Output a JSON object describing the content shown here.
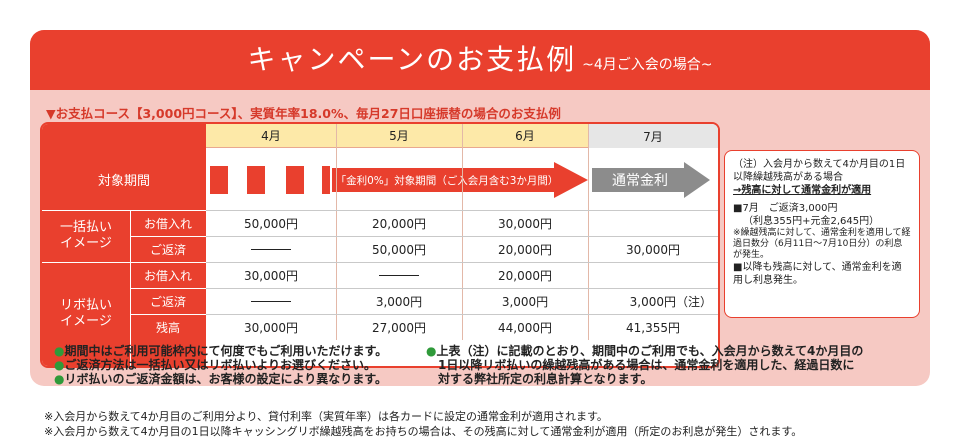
{
  "header": {
    "title": "キャンペーンのお支払例",
    "subtitle": "~4月ご入会の場合~"
  },
  "caption": "▼お支払コース【3,000円コース】、実質年率18.0%、毎月27日口座振替の場合のお支払例",
  "months": [
    "4月",
    "5月",
    "6月",
    "7月"
  ],
  "rows": {
    "period": "対象期間",
    "lump_group": "一括払い\nイメージ",
    "revo_group": "リボ払い\nイメージ",
    "borrow": "お借入れ",
    "repay": "ご返済",
    "balance": "残高"
  },
  "period_bar": {
    "campaign": "「金利0%」対象期間（ご入会月含む3か月間）",
    "normal": "通常金利"
  },
  "lump": {
    "borrow": [
      "50,000円",
      "20,000円",
      "30,000円",
      ""
    ],
    "repay": [
      "—",
      "50,000円",
      "20,000円",
      "30,000円"
    ]
  },
  "revo": {
    "borrow": [
      "30,000円",
      "—",
      "20,000円",
      ""
    ],
    "repay": [
      "—",
      "3,000円",
      "3,000円",
      "3,000円（注）"
    ],
    "balance": [
      "30,000円",
      "27,000円",
      "44,000円",
      "41,355円"
    ]
  },
  "note": {
    "line1": "（注）入会月から数えて4か月目の1日以降繰越残高がある場合",
    "line2": "→残高に対して通常金利が適用",
    "line3": "■7月　ご返済3,000円",
    "line4": "（利息355円+元金2,645円）",
    "line5": "※繰越残高に対して、通常金利を適用して経過日数分（6月11日～7月10日分）の利息が発生。",
    "line6": "■以降も残高に対して、通常金利を適用し利息発生。"
  },
  "bullets_left": [
    "●期間中はご利用可能枠内にて何度でもご利用いただけます。",
    "●ご返済方法は一括払い又はリボ払いよりお選びください。",
    "●リボ払いのご返済金額は、お客様の設定により異なります。"
  ],
  "bullets_right": [
    "●上表（注）に記載のとおり、期間中のご利用でも、入会月から数えて4か月目の",
    "1日以降リボ払いの繰越残高がある場合は、通常金利を適用した、経過日数に",
    "対する弊社所定の利息計算となります。"
  ],
  "footnotes": [
    "※入会月から数えて4か月目のご利用分より、貸付利率（実質年率）は各カードに設定の通常金利が適用されます。",
    "※入会月から数えて4か月目の1日以降キャッシングリボ繰越残高をお持ちの場合は、その残高に対して通常金利が適用（所定のお利息が発生）されます。"
  ],
  "colors": {
    "accent": "#e9402e",
    "panel": "#f6c9c3",
    "header_yellow": "#fde9a8",
    "bullet_green": "#2f9a3a"
  }
}
